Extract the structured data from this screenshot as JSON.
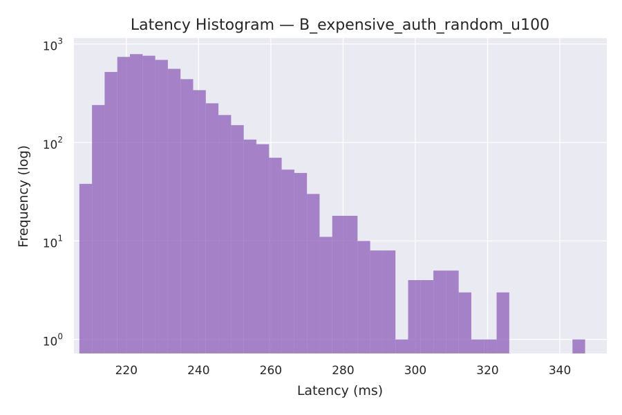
{
  "chart_data": {
    "type": "bar",
    "title": "Latency Histogram — B_expensive_auth_random_u100",
    "xlabel": "Latency (ms)",
    "ylabel": "Frequency (log)",
    "yscale": "log",
    "grid": true,
    "bar_color": "#9467bd",
    "background_color": "#eaeaf2",
    "xlim": [
      205.5,
      353
    ],
    "ylim": [
      0.72,
      1150
    ],
    "x_ticks": [
      {
        "value": 220,
        "label": "220"
      },
      {
        "value": 240,
        "label": "240"
      },
      {
        "value": 260,
        "label": "260"
      },
      {
        "value": 280,
        "label": "280"
      },
      {
        "value": 300,
        "label": "300"
      },
      {
        "value": 320,
        "label": "320"
      },
      {
        "value": 340,
        "label": "340"
      }
    ],
    "y_ticks": [
      {
        "value": 1,
        "base": "10",
        "exp": "0"
      },
      {
        "value": 10,
        "base": "10",
        "exp": "1"
      },
      {
        "value": 100,
        "base": "10",
        "exp": "2"
      },
      {
        "value": 1000,
        "base": "10",
        "exp": "3"
      }
    ],
    "bins": [
      {
        "x0": 207.0,
        "x1": 210.5,
        "count": 38
      },
      {
        "x0": 210.5,
        "x1": 214.0,
        "count": 240
      },
      {
        "x0": 214.0,
        "x1": 217.5,
        "count": 520
      },
      {
        "x0": 217.5,
        "x1": 221.0,
        "count": 740
      },
      {
        "x0": 221.0,
        "x1": 224.5,
        "count": 790
      },
      {
        "x0": 224.5,
        "x1": 228.0,
        "count": 760
      },
      {
        "x0": 228.0,
        "x1": 231.5,
        "count": 690
      },
      {
        "x0": 231.5,
        "x1": 235.0,
        "count": 560
      },
      {
        "x0": 235.0,
        "x1": 238.5,
        "count": 440
      },
      {
        "x0": 238.5,
        "x1": 242.0,
        "count": 340
      },
      {
        "x0": 242.0,
        "x1": 245.5,
        "count": 250
      },
      {
        "x0": 245.5,
        "x1": 249.0,
        "count": 190
      },
      {
        "x0": 249.0,
        "x1": 252.5,
        "count": 150
      },
      {
        "x0": 252.5,
        "x1": 256.0,
        "count": 107
      },
      {
        "x0": 256.0,
        "x1": 259.5,
        "count": 96
      },
      {
        "x0": 259.5,
        "x1": 263.0,
        "count": 70
      },
      {
        "x0": 263.0,
        "x1": 266.5,
        "count": 53
      },
      {
        "x0": 266.5,
        "x1": 270.0,
        "count": 49
      },
      {
        "x0": 270.0,
        "x1": 273.5,
        "count": 30
      },
      {
        "x0": 273.5,
        "x1": 277.0,
        "count": 11
      },
      {
        "x0": 277.0,
        "x1": 280.5,
        "count": 18
      },
      {
        "x0": 280.5,
        "x1": 284.0,
        "count": 18
      },
      {
        "x0": 284.0,
        "x1": 287.5,
        "count": 10
      },
      {
        "x0": 287.5,
        "x1": 291.0,
        "count": 8
      },
      {
        "x0": 291.0,
        "x1": 294.5,
        "count": 8
      },
      {
        "x0": 294.5,
        "x1": 298.0,
        "count": 1
      },
      {
        "x0": 298.0,
        "x1": 301.5,
        "count": 4
      },
      {
        "x0": 301.5,
        "x1": 305.0,
        "count": 4
      },
      {
        "x0": 305.0,
        "x1": 308.5,
        "count": 5
      },
      {
        "x0": 308.5,
        "x1": 312.0,
        "count": 5
      },
      {
        "x0": 312.0,
        "x1": 315.5,
        "count": 3
      },
      {
        "x0": 315.5,
        "x1": 319.0,
        "count": 1
      },
      {
        "x0": 319.0,
        "x1": 322.5,
        "count": 1
      },
      {
        "x0": 322.5,
        "x1": 326.0,
        "count": 3
      },
      {
        "x0": 343.5,
        "x1": 347.0,
        "count": 1
      }
    ]
  }
}
